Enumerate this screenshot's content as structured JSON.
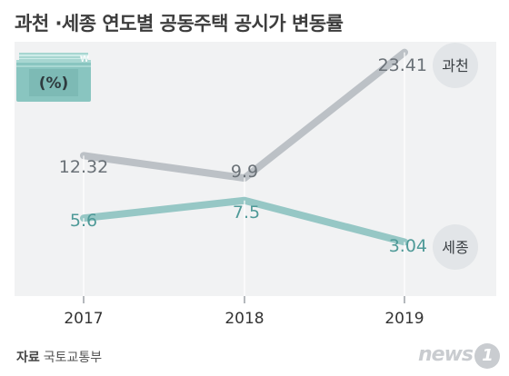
{
  "title": "과천 ·세종 연도별 공동주택 공시가 변동률",
  "icon": {
    "name": "money-stack-percent-icon",
    "label": "(%)",
    "symbol": "₩"
  },
  "source": {
    "label": "자료",
    "value": "국토교통부"
  },
  "logo": {
    "text": "news",
    "num": "1"
  },
  "colors": {
    "gwacheon": "#bcc1c6",
    "sejong": "#96c7c5",
    "background": "#f1f2f3",
    "label_gwacheon": "#6a7177",
    "label_sejong": "#4f9a98"
  },
  "chart_data": {
    "type": "line",
    "title": "과천 ·세종 연도별 공동주택 공시가 변동률",
    "x": [
      "2017",
      "2018",
      "2019"
    ],
    "series": [
      {
        "name": "과천",
        "values": [
          12.32,
          9.9,
          23.41
        ],
        "labels": [
          "12.32",
          "9.9",
          "23.41"
        ]
      },
      {
        "name": "세종",
        "values": [
          5.6,
          7.5,
          3.04
        ],
        "labels": [
          "5.6",
          "7.5",
          "3.04"
        ]
      }
    ],
    "xlabel": "",
    "ylabel": "",
    "unit": "(%)",
    "grid": false,
    "legend": "end-of-line"
  }
}
